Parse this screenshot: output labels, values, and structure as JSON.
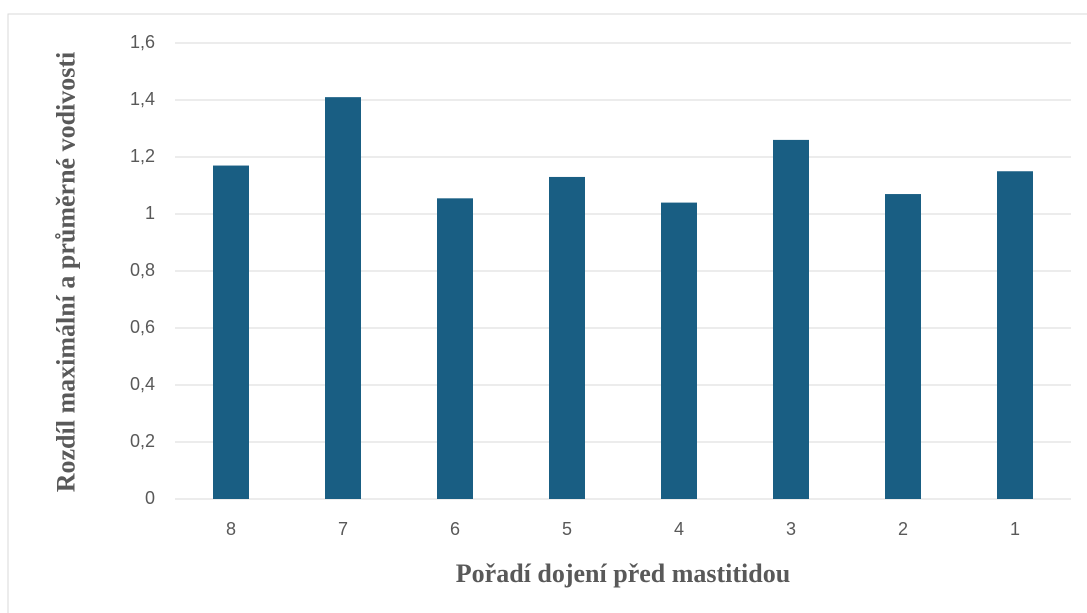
{
  "chart_data": {
    "type": "bar",
    "x_label": "Pořadí dojení před mastitidou",
    "y_label": "Rozdíl maximální a průměrné vodivosti",
    "categories": [
      "8",
      "7",
      "6",
      "5",
      "4",
      "3",
      "2",
      "1"
    ],
    "values": [
      1.17,
      1.41,
      1.055,
      1.13,
      1.04,
      1.26,
      1.07,
      1.15
    ],
    "color": "#195e83",
    "ylim": [
      0,
      1.6
    ],
    "yticks": [
      0,
      {
        "value": 0.2,
        "label": "0,2"
      },
      {
        "value": 0.4,
        "label": "0,4"
      },
      {
        "value": 0.6,
        "label": "0,6"
      },
      {
        "value": 0.8,
        "label": "0,8"
      },
      1,
      {
        "value": 1.2,
        "label": "1,2"
      },
      {
        "value": 1.4,
        "label": "1,4"
      },
      {
        "value": 1.6,
        "label": "1,6"
      }
    ],
    "grid": true
  }
}
